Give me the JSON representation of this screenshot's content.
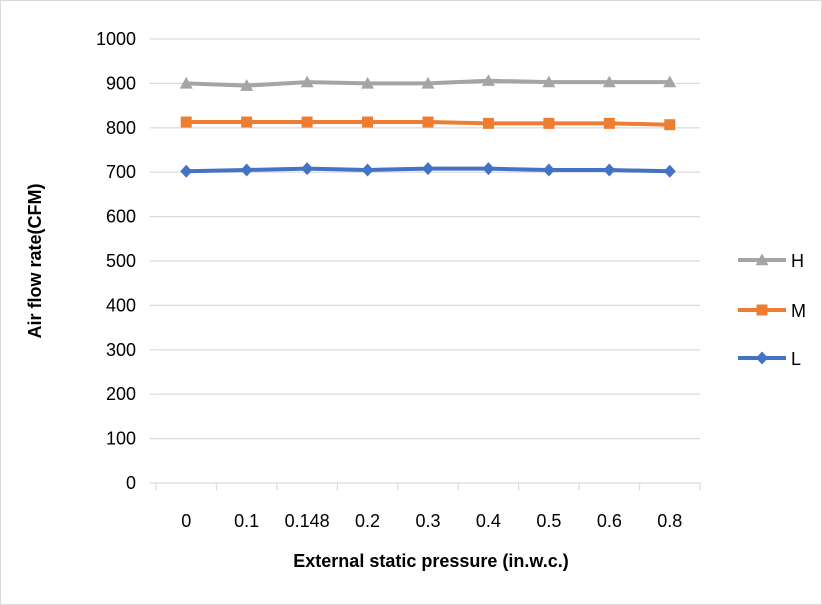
{
  "chart_data": {
    "type": "line",
    "title": "",
    "xlabel": "External static pressure (in.w.c.)",
    "ylabel": "Air flow rate(CFM)",
    "categories": [
      "0",
      "0.1",
      "0.148",
      "0.2",
      "0.3",
      "0.4",
      "0.5",
      "0.6",
      "0.8"
    ],
    "ylim": [
      0,
      1000
    ],
    "yticks": [
      0,
      100,
      200,
      300,
      400,
      500,
      600,
      700,
      800,
      900,
      1000
    ],
    "grid": true,
    "legend_position": "right",
    "series": [
      {
        "name": "H",
        "color": "#a5a5a5",
        "marker": "triangle",
        "values": [
          900,
          895,
          903,
          900,
          900,
          906,
          903,
          903,
          903
        ]
      },
      {
        "name": "M",
        "color": "#ed7d31",
        "marker": "square",
        "values": [
          813,
          813,
          813,
          813,
          813,
          810,
          810,
          810,
          807
        ]
      },
      {
        "name": "L",
        "color": "#4472c4",
        "marker": "diamond",
        "values": [
          702,
          705,
          708,
          705,
          708,
          708,
          705,
          705,
          702
        ]
      }
    ]
  }
}
